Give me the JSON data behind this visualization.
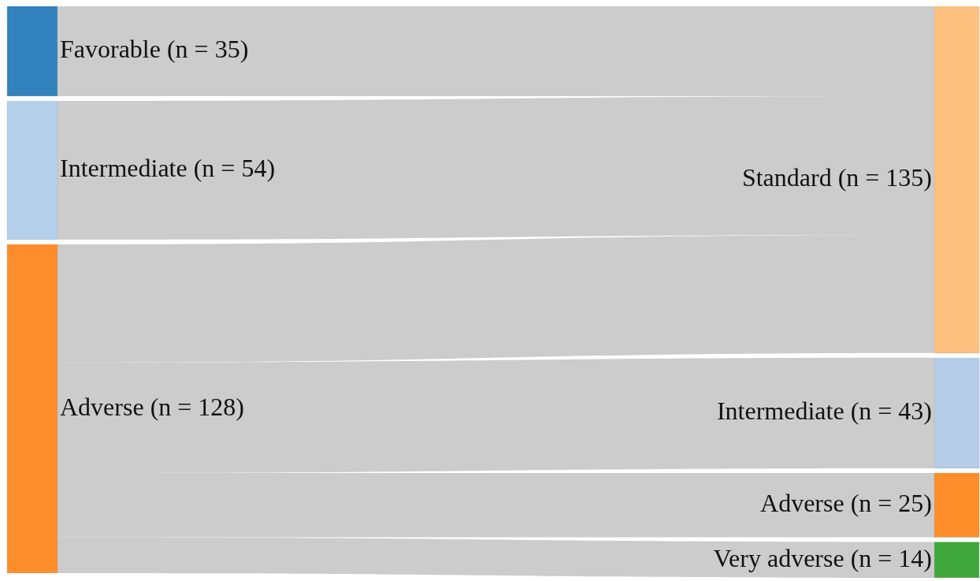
{
  "chart_data": {
    "type": "other",
    "categories": [
      "Favorable",
      "Intermediate",
      "Adverse",
      "Standard",
      "Intermediate",
      "Adverse",
      "Very adverse"
    ],
    "series": [
      {
        "values": [
          35,
          54,
          128,
          null,
          null,
          null,
          null
        ],
        "value_labels": [
          "(n = 35)",
          "(n = 54)",
          "(n = 128)",
          null,
          null,
          null,
          null
        ]
      },
      {
        "values": [
          null,
          null,
          null,
          135,
          43,
          25,
          14
        ],
        "value_labels": [
          null,
          null,
          null,
          "(n = 135)",
          "(n = 43)",
          "(n = 25)",
          "(n = 14)"
        ]
      }
    ],
    "colors": [
      "#3182bd",
      "#b5d0ea",
      "#fd8d2b",
      "#fdc07f",
      "#b5cde9",
      "#fd8d28",
      "#41a83e"
    ]
  }
}
